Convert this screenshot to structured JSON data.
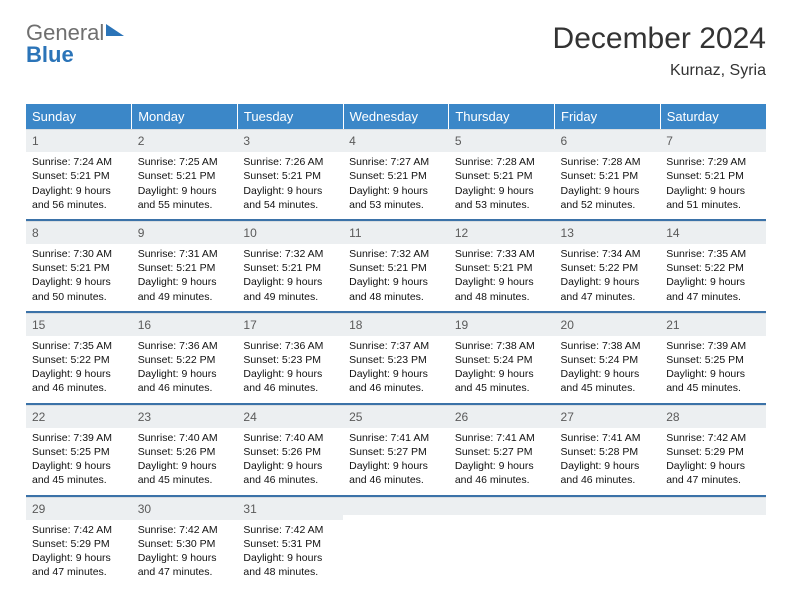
{
  "brand": {
    "part1": "General",
    "part2": "Blue"
  },
  "title": "December 2024",
  "location": "Kurnaz, Syria",
  "colors": {
    "header_bg": "#3b87c8",
    "header_text": "#ffffff",
    "daynum_bg": "#eceff1",
    "daynum_text": "#5a5a5a",
    "week_separator": "#3b72a8",
    "body_text": "#111111",
    "brand_gray": "#6f6f6f",
    "brand_blue": "#2b74b8"
  },
  "font": {
    "family": "Arial",
    "title_size_pt": 22,
    "header_size_pt": 10,
    "cell_size_pt": 8
  },
  "weekdays": [
    "Sunday",
    "Monday",
    "Tuesday",
    "Wednesday",
    "Thursday",
    "Friday",
    "Saturday"
  ],
  "weeks": [
    [
      {
        "n": "1",
        "sr": "Sunrise: 7:24 AM",
        "ss": "Sunset: 5:21 PM",
        "d1": "Daylight: 9 hours",
        "d2": "and 56 minutes."
      },
      {
        "n": "2",
        "sr": "Sunrise: 7:25 AM",
        "ss": "Sunset: 5:21 PM",
        "d1": "Daylight: 9 hours",
        "d2": "and 55 minutes."
      },
      {
        "n": "3",
        "sr": "Sunrise: 7:26 AM",
        "ss": "Sunset: 5:21 PM",
        "d1": "Daylight: 9 hours",
        "d2": "and 54 minutes."
      },
      {
        "n": "4",
        "sr": "Sunrise: 7:27 AM",
        "ss": "Sunset: 5:21 PM",
        "d1": "Daylight: 9 hours",
        "d2": "and 53 minutes."
      },
      {
        "n": "5",
        "sr": "Sunrise: 7:28 AM",
        "ss": "Sunset: 5:21 PM",
        "d1": "Daylight: 9 hours",
        "d2": "and 53 minutes."
      },
      {
        "n": "6",
        "sr": "Sunrise: 7:28 AM",
        "ss": "Sunset: 5:21 PM",
        "d1": "Daylight: 9 hours",
        "d2": "and 52 minutes."
      },
      {
        "n": "7",
        "sr": "Sunrise: 7:29 AM",
        "ss": "Sunset: 5:21 PM",
        "d1": "Daylight: 9 hours",
        "d2": "and 51 minutes."
      }
    ],
    [
      {
        "n": "8",
        "sr": "Sunrise: 7:30 AM",
        "ss": "Sunset: 5:21 PM",
        "d1": "Daylight: 9 hours",
        "d2": "and 50 minutes."
      },
      {
        "n": "9",
        "sr": "Sunrise: 7:31 AM",
        "ss": "Sunset: 5:21 PM",
        "d1": "Daylight: 9 hours",
        "d2": "and 49 minutes."
      },
      {
        "n": "10",
        "sr": "Sunrise: 7:32 AM",
        "ss": "Sunset: 5:21 PM",
        "d1": "Daylight: 9 hours",
        "d2": "and 49 minutes."
      },
      {
        "n": "11",
        "sr": "Sunrise: 7:32 AM",
        "ss": "Sunset: 5:21 PM",
        "d1": "Daylight: 9 hours",
        "d2": "and 48 minutes."
      },
      {
        "n": "12",
        "sr": "Sunrise: 7:33 AM",
        "ss": "Sunset: 5:21 PM",
        "d1": "Daylight: 9 hours",
        "d2": "and 48 minutes."
      },
      {
        "n": "13",
        "sr": "Sunrise: 7:34 AM",
        "ss": "Sunset: 5:22 PM",
        "d1": "Daylight: 9 hours",
        "d2": "and 47 minutes."
      },
      {
        "n": "14",
        "sr": "Sunrise: 7:35 AM",
        "ss": "Sunset: 5:22 PM",
        "d1": "Daylight: 9 hours",
        "d2": "and 47 minutes."
      }
    ],
    [
      {
        "n": "15",
        "sr": "Sunrise: 7:35 AM",
        "ss": "Sunset: 5:22 PM",
        "d1": "Daylight: 9 hours",
        "d2": "and 46 minutes."
      },
      {
        "n": "16",
        "sr": "Sunrise: 7:36 AM",
        "ss": "Sunset: 5:22 PM",
        "d1": "Daylight: 9 hours",
        "d2": "and 46 minutes."
      },
      {
        "n": "17",
        "sr": "Sunrise: 7:36 AM",
        "ss": "Sunset: 5:23 PM",
        "d1": "Daylight: 9 hours",
        "d2": "and 46 minutes."
      },
      {
        "n": "18",
        "sr": "Sunrise: 7:37 AM",
        "ss": "Sunset: 5:23 PM",
        "d1": "Daylight: 9 hours",
        "d2": "and 46 minutes."
      },
      {
        "n": "19",
        "sr": "Sunrise: 7:38 AM",
        "ss": "Sunset: 5:24 PM",
        "d1": "Daylight: 9 hours",
        "d2": "and 45 minutes."
      },
      {
        "n": "20",
        "sr": "Sunrise: 7:38 AM",
        "ss": "Sunset: 5:24 PM",
        "d1": "Daylight: 9 hours",
        "d2": "and 45 minutes."
      },
      {
        "n": "21",
        "sr": "Sunrise: 7:39 AM",
        "ss": "Sunset: 5:25 PM",
        "d1": "Daylight: 9 hours",
        "d2": "and 45 minutes."
      }
    ],
    [
      {
        "n": "22",
        "sr": "Sunrise: 7:39 AM",
        "ss": "Sunset: 5:25 PM",
        "d1": "Daylight: 9 hours",
        "d2": "and 45 minutes."
      },
      {
        "n": "23",
        "sr": "Sunrise: 7:40 AM",
        "ss": "Sunset: 5:26 PM",
        "d1": "Daylight: 9 hours",
        "d2": "and 45 minutes."
      },
      {
        "n": "24",
        "sr": "Sunrise: 7:40 AM",
        "ss": "Sunset: 5:26 PM",
        "d1": "Daylight: 9 hours",
        "d2": "and 46 minutes."
      },
      {
        "n": "25",
        "sr": "Sunrise: 7:41 AM",
        "ss": "Sunset: 5:27 PM",
        "d1": "Daylight: 9 hours",
        "d2": "and 46 minutes."
      },
      {
        "n": "26",
        "sr": "Sunrise: 7:41 AM",
        "ss": "Sunset: 5:27 PM",
        "d1": "Daylight: 9 hours",
        "d2": "and 46 minutes."
      },
      {
        "n": "27",
        "sr": "Sunrise: 7:41 AM",
        "ss": "Sunset: 5:28 PM",
        "d1": "Daylight: 9 hours",
        "d2": "and 46 minutes."
      },
      {
        "n": "28",
        "sr": "Sunrise: 7:42 AM",
        "ss": "Sunset: 5:29 PM",
        "d1": "Daylight: 9 hours",
        "d2": "and 47 minutes."
      }
    ],
    [
      {
        "n": "29",
        "sr": "Sunrise: 7:42 AM",
        "ss": "Sunset: 5:29 PM",
        "d1": "Daylight: 9 hours",
        "d2": "and 47 minutes."
      },
      {
        "n": "30",
        "sr": "Sunrise: 7:42 AM",
        "ss": "Sunset: 5:30 PM",
        "d1": "Daylight: 9 hours",
        "d2": "and 47 minutes."
      },
      {
        "n": "31",
        "sr": "Sunrise: 7:42 AM",
        "ss": "Sunset: 5:31 PM",
        "d1": "Daylight: 9 hours",
        "d2": "and 48 minutes."
      },
      null,
      null,
      null,
      null
    ]
  ]
}
